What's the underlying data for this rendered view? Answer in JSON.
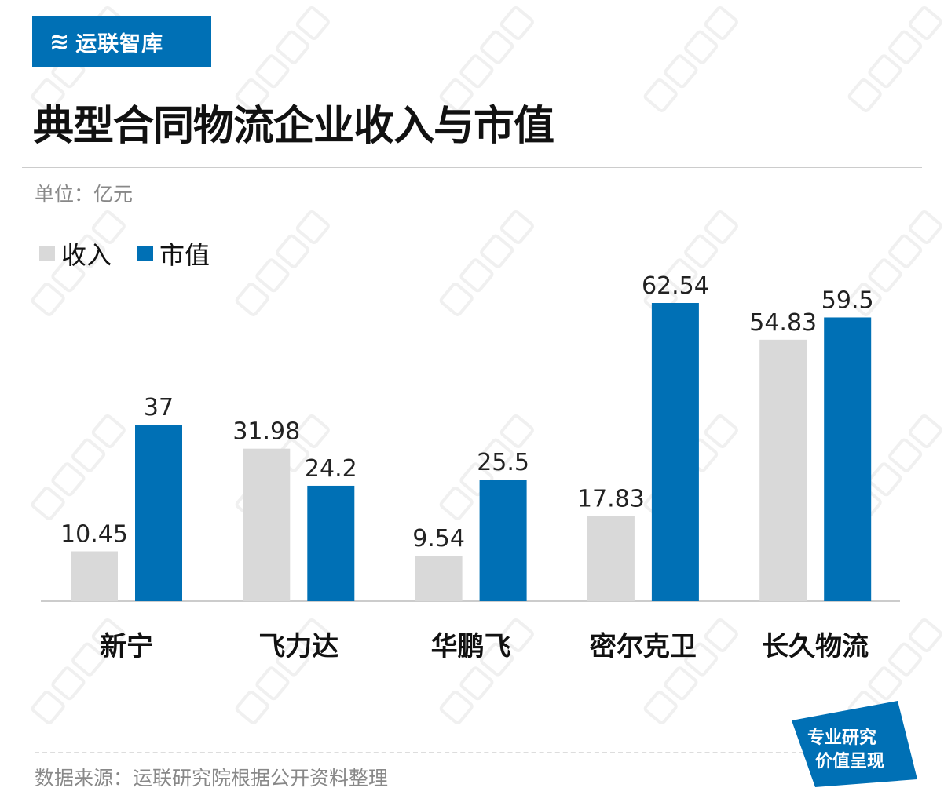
{
  "logo": {
    "text": "运联智库",
    "icon": "swirl-logo-icon"
  },
  "title": "典型合同物流企业收入与市值",
  "unit": "单位：亿元",
  "source": "数据来源：运联研究院根据公开资料整理",
  "badge": {
    "line1": "专业研究",
    "line2": "价值呈现"
  },
  "watermark": "运联智库",
  "colors": {
    "brand": "#0070b5",
    "revenue": "#d9d9d9",
    "market_cap": "#0070b5"
  },
  "chart_data": {
    "type": "bar",
    "title": "典型合同物流企业收入与市值",
    "ylabel": "单位：亿元",
    "categories": [
      "新宁",
      "飞力达",
      "华鹏飞",
      "密尔克卫",
      "长久物流"
    ],
    "series": [
      {
        "name": "收入",
        "color": "#d9d9d9",
        "values": [
          10.45,
          31.98,
          9.54,
          17.83,
          54.83
        ],
        "labels": [
          "10.45",
          "31.98",
          "9.54",
          "17.83",
          "54.83"
        ]
      },
      {
        "name": "市值",
        "color": "#0070b5",
        "values": [
          37,
          24.2,
          25.5,
          62.54,
          59.5
        ],
        "labels": [
          "37",
          "24.2",
          "25.5",
          "62.54",
          "59.5"
        ]
      }
    ],
    "ylim": [
      0,
      62.54
    ],
    "grid": false,
    "legend": "top-left"
  }
}
